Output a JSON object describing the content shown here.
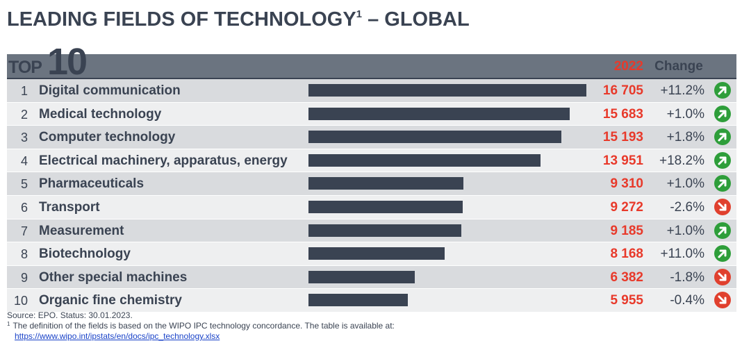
{
  "title": "LEADING FIELDS OF TECHNOLOGY",
  "title_footnote_mark": "1",
  "title_suffix": " – GLOBAL",
  "header": {
    "top_word": "TOP",
    "top_number": "10",
    "year_label": "2022",
    "change_label": "Change"
  },
  "colors": {
    "bar": "#3a4352",
    "value_red": "#e8392a",
    "up_green": "#2e9e3a",
    "down_red": "#e0402e",
    "header_bg": "#6b7480"
  },
  "chart_data": {
    "type": "bar",
    "orientation": "horizontal",
    "title": "LEADING FIELDS OF TECHNOLOGY – GLOBAL",
    "series_label": "2022",
    "xlim": [
      0,
      16705
    ],
    "rows": [
      {
        "rank": "1",
        "field": "Digital communication",
        "value": 16705,
        "value_label": "16 705",
        "change": "+11.2%",
        "trend": "up"
      },
      {
        "rank": "2",
        "field": "Medical technology",
        "value": 15683,
        "value_label": "15 683",
        "change": "+1.0%",
        "trend": "up"
      },
      {
        "rank": "3",
        "field": "Computer technology",
        "value": 15193,
        "value_label": "15 193",
        "change": "+1.8%",
        "trend": "up"
      },
      {
        "rank": "4",
        "field": "Electrical machinery, apparatus, energy",
        "value": 13951,
        "value_label": "13 951",
        "change": "+18.2%",
        "trend": "up"
      },
      {
        "rank": "5",
        "field": "Pharmaceuticals",
        "value": 9310,
        "value_label": "9 310",
        "change": "+1.0%",
        "trend": "up"
      },
      {
        "rank": "6",
        "field": "Transport",
        "value": 9272,
        "value_label": "9 272",
        "change": "-2.6%",
        "trend": "down"
      },
      {
        "rank": "7",
        "field": "Measurement",
        "value": 9185,
        "value_label": "9 185",
        "change": "+1.0%",
        "trend": "up"
      },
      {
        "rank": "8",
        "field": "Biotechnology",
        "value": 8168,
        "value_label": "8 168",
        "change": "+11.0%",
        "trend": "up"
      },
      {
        "rank": "9",
        "field": "Other special machines",
        "value": 6382,
        "value_label": "6 382",
        "change": "-1.8%",
        "trend": "down"
      },
      {
        "rank": "10",
        "field": "Organic fine chemistry",
        "value": 5955,
        "value_label": "5 955",
        "change": "-0.4%",
        "trend": "down"
      }
    ]
  },
  "footer": {
    "source": "Source: EPO. Status: 30.01.2023.",
    "note_mark": "1",
    "note_text": "The definition of the fields is based on the WIPO IPC technology concordance. The table is available at:",
    "link": "https://www.wipo.int/ipstats/en/docs/ipc_technology.xlsx"
  }
}
